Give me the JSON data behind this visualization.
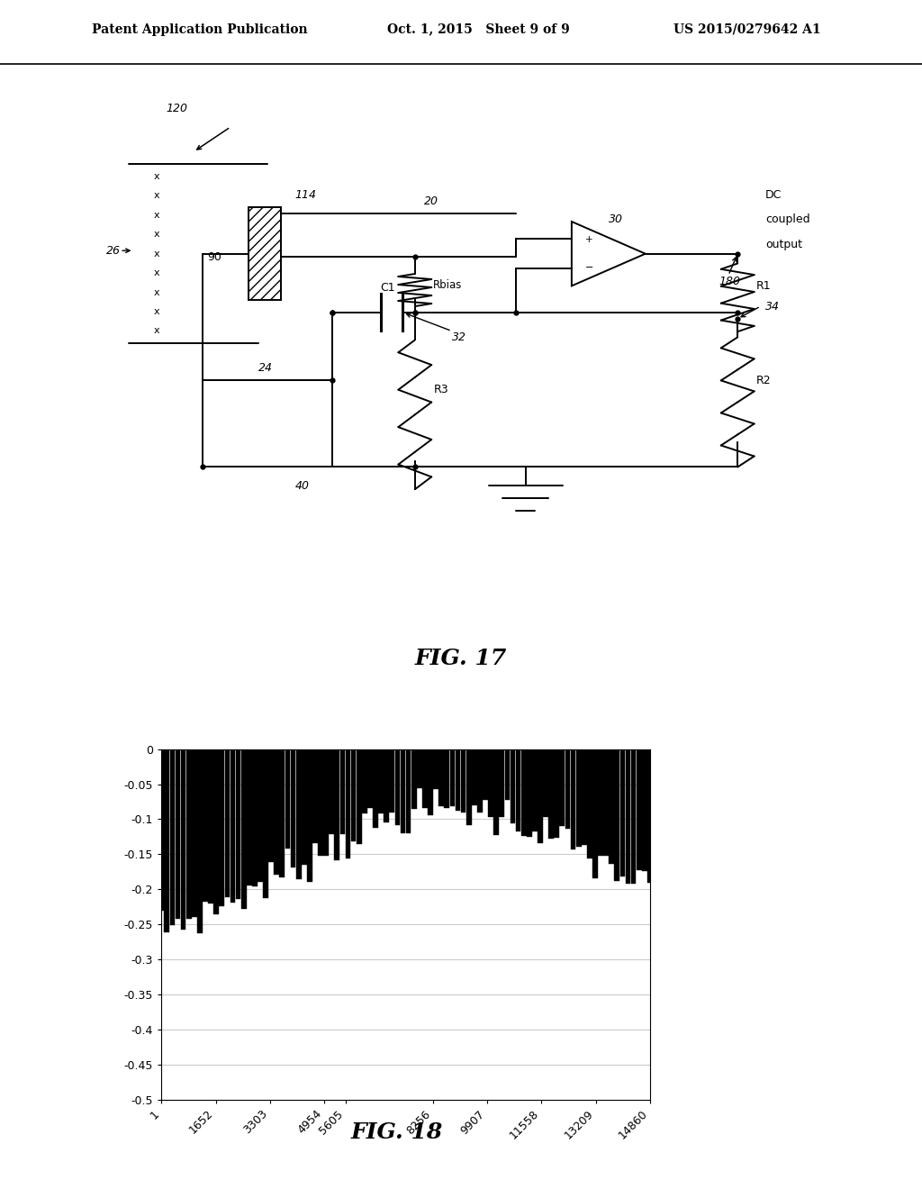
{
  "header_left": "Patent Application Publication",
  "header_center": "Oct. 1, 2015   Sheet 9 of 9",
  "header_right": "US 2015/0279642 A1",
  "fig17_caption": "FIG. 17",
  "fig18_caption": "FIG. 18",
  "chart_ylim": [
    -0.5,
    0
  ],
  "chart_yticks": [
    0,
    -0.05,
    -0.1,
    -0.15,
    -0.2,
    -0.25,
    -0.3,
    -0.35,
    -0.4,
    -0.45,
    -0.5
  ],
  "chart_xtick_vals": [
    1,
    1652,
    3303,
    4954,
    5605,
    8256,
    9907,
    11558,
    13209,
    14860
  ],
  "chart_xtick_labels": [
    "1",
    "1652",
    "3303",
    "4954",
    "5605",
    "8256",
    "9907",
    "11558",
    "13209",
    "14860"
  ],
  "background_color": "#ffffff"
}
